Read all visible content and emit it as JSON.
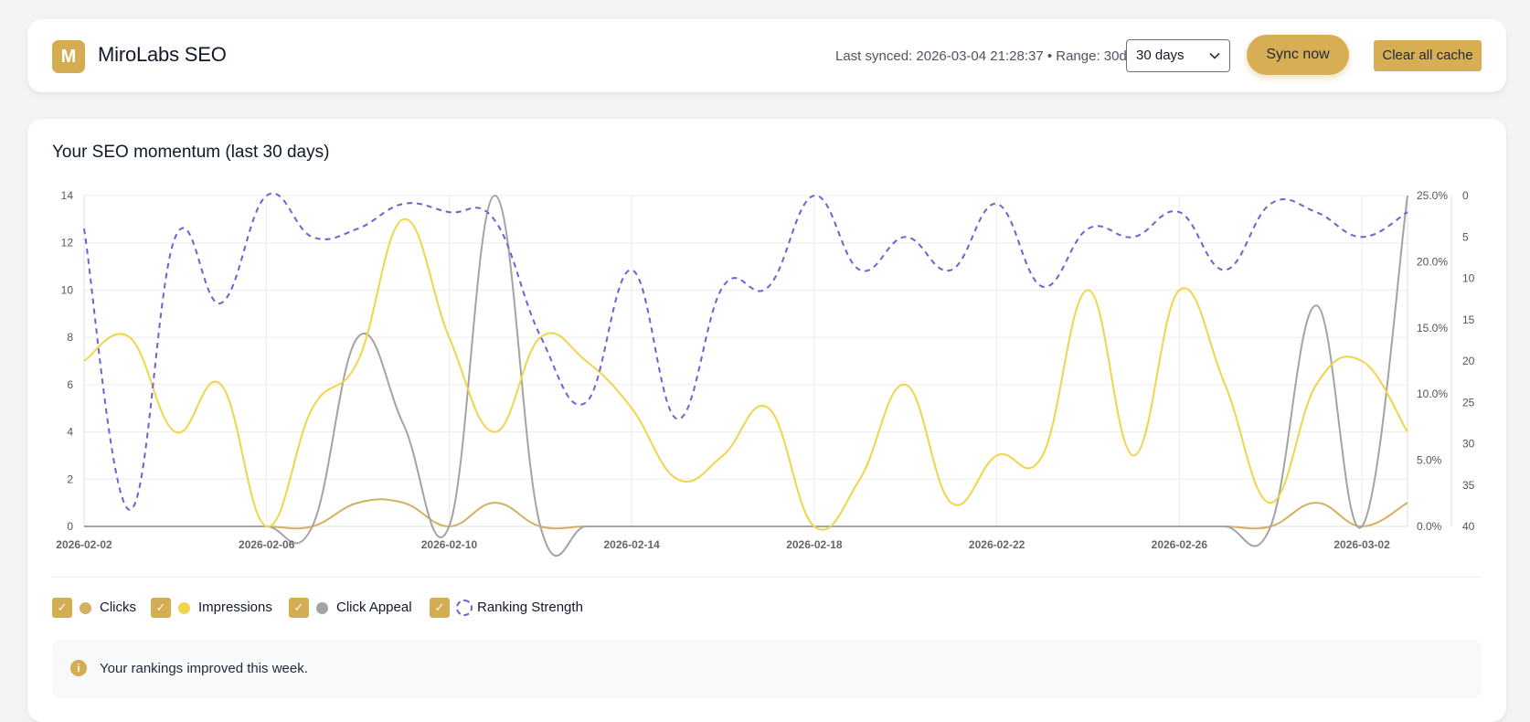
{
  "header": {
    "logo_letter": "M",
    "app_name": "MiroLabs SEO",
    "sync_info": "Last synced: 2026-03-04 21:28:37 • Range: 30d",
    "range_value": "30 days",
    "sync_button": "Sync now",
    "clear_button": "Clear all cache"
  },
  "colors": {
    "accent": "#d4ad52",
    "clicks": "#d4b060",
    "impressions": "#f0d54a",
    "click_appeal": "#a3a3a3",
    "ranking_strength": "#6d61d6"
  },
  "legend": [
    {
      "label": "Clicks",
      "check": "✓"
    },
    {
      "label": "Impressions",
      "check": "✓"
    },
    {
      "label": "Click Appeal",
      "check": "✓"
    },
    {
      "label": "Ranking Strength",
      "check": "✓"
    }
  ],
  "info": {
    "icon": "i",
    "text": "Your rankings improved this week."
  },
  "chart_data": {
    "type": "line",
    "title": "Your SEO momentum (last 30 days)",
    "x": [
      "2026-02-02",
      "2026-02-03",
      "2026-02-04",
      "2026-02-05",
      "2026-02-06",
      "2026-02-07",
      "2026-02-08",
      "2026-02-09",
      "2026-02-10",
      "2026-02-11",
      "2026-02-12",
      "2026-02-13",
      "2026-02-14",
      "2026-02-15",
      "2026-02-16",
      "2026-02-17",
      "2026-02-18",
      "2026-02-19",
      "2026-02-20",
      "2026-02-21",
      "2026-02-22",
      "2026-02-23",
      "2026-02-24",
      "2026-02-25",
      "2026-02-26",
      "2026-02-27",
      "2026-02-28",
      "2026-03-01",
      "2026-03-02",
      "2026-03-03"
    ],
    "x_tick_labels": [
      "2026-02-02",
      "2026-02-06",
      "2026-02-10",
      "2026-02-14",
      "2026-02-18",
      "2026-02-22",
      "2026-02-26",
      "2026-03-02"
    ],
    "y_left": {
      "min": 0,
      "max": 14,
      "ticks": [
        "0",
        "2",
        "4",
        "6",
        "8",
        "10",
        "12",
        "14"
      ]
    },
    "y_right_percent": {
      "min": 0,
      "max": 25,
      "ticks": [
        "0.0%",
        "5.0%",
        "10.0%",
        "15.0%",
        "20.0%",
        "25.0%"
      ]
    },
    "y_right_rank": {
      "min": 0,
      "max": 40,
      "reversed": true,
      "ticks": [
        "0",
        "5",
        "10",
        "15",
        "20",
        "25",
        "30",
        "35",
        "40"
      ]
    },
    "series": [
      {
        "name": "Clicks",
        "axis": "left",
        "values": [
          0,
          0,
          0,
          0,
          0,
          0,
          1,
          1,
          0,
          1,
          0,
          0,
          0,
          0,
          0,
          0,
          0,
          0,
          0,
          0,
          0,
          0,
          0,
          0,
          0,
          0,
          0,
          1,
          0,
          1
        ]
      },
      {
        "name": "Impressions",
        "axis": "left",
        "values": [
          7,
          8,
          4,
          6,
          0,
          5,
          7,
          13,
          8,
          4,
          8,
          7,
          5,
          2,
          3,
          5,
          0,
          2,
          6,
          1,
          3,
          3,
          10,
          3,
          10,
          6,
          1,
          6,
          7,
          4
        ]
      },
      {
        "name": "Click Appeal",
        "axis": "right_percent",
        "values": [
          0,
          0,
          0,
          0,
          0,
          0,
          14.3,
          7.7,
          0,
          25,
          0,
          0,
          0,
          0,
          0,
          0,
          0,
          0,
          0,
          0,
          0,
          0,
          0,
          0,
          0,
          0,
          0,
          16.7,
          0,
          25
        ]
      },
      {
        "name": "Ranking Strength",
        "axis": "right_rank",
        "values": [
          4,
          38,
          5,
          13,
          0,
          5,
          4,
          1,
          2,
          3,
          17,
          25,
          9,
          27,
          11,
          11,
          0,
          9,
          5,
          9,
          1,
          11,
          4,
          5,
          2,
          9,
          1,
          2,
          5,
          2
        ]
      }
    ],
    "grid": true,
    "legend_position": "bottom-left"
  }
}
